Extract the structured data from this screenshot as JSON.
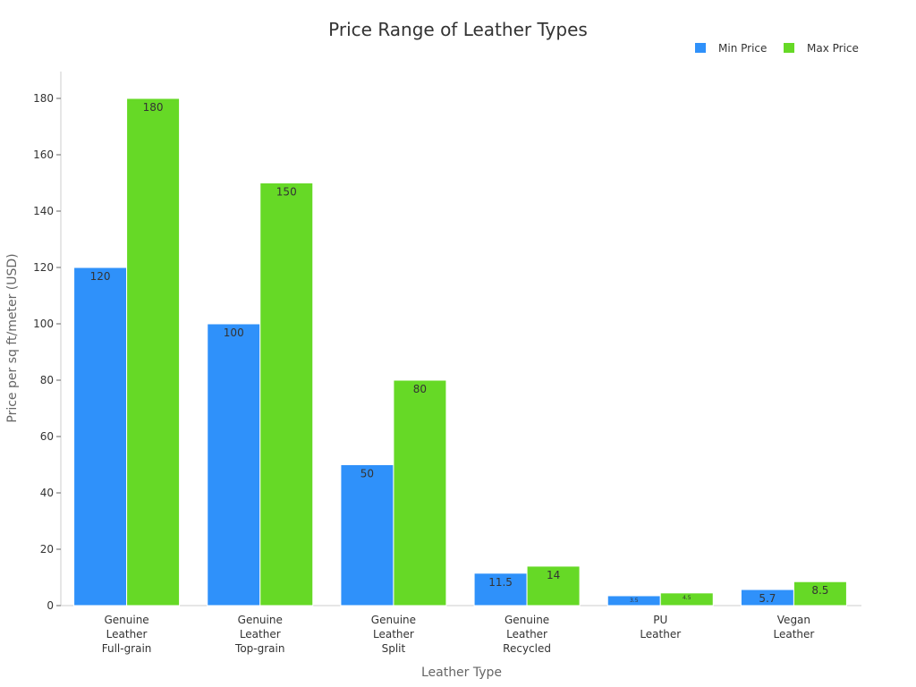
{
  "chart_data": {
    "type": "bar",
    "title": "Price Range of Leather Types",
    "xlabel": "Leather Type",
    "ylabel": "Price per sq ft/meter (USD)",
    "ylim": [
      0,
      190
    ],
    "yticks": [
      0,
      20,
      40,
      60,
      80,
      100,
      120,
      140,
      160,
      180
    ],
    "categories": [
      [
        "Genuine",
        "Leather",
        "Full-grain"
      ],
      [
        "Genuine",
        "Leather",
        "Top-grain"
      ],
      [
        "Genuine",
        "Leather",
        "Split"
      ],
      [
        "Genuine",
        "Leather",
        "Recycled"
      ],
      [
        "PU",
        "Leather"
      ],
      [
        "Vegan",
        "Leather"
      ]
    ],
    "series": [
      {
        "name": "Min Price",
        "color": "#2f91fa",
        "values": [
          120,
          100,
          50,
          11.5,
          3.5,
          5.7
        ],
        "labels": [
          "120",
          "100",
          "50",
          "11.5",
          "3.5",
          "5.7"
        ]
      },
      {
        "name": "Max Price",
        "color": "#66d926",
        "values": [
          180,
          150,
          80,
          14,
          4.5,
          8.5
        ],
        "labels": [
          "180",
          "150",
          "80",
          "14",
          "4.5",
          "8.5"
        ]
      }
    ],
    "legend_position": "top-right",
    "grid": false
  }
}
